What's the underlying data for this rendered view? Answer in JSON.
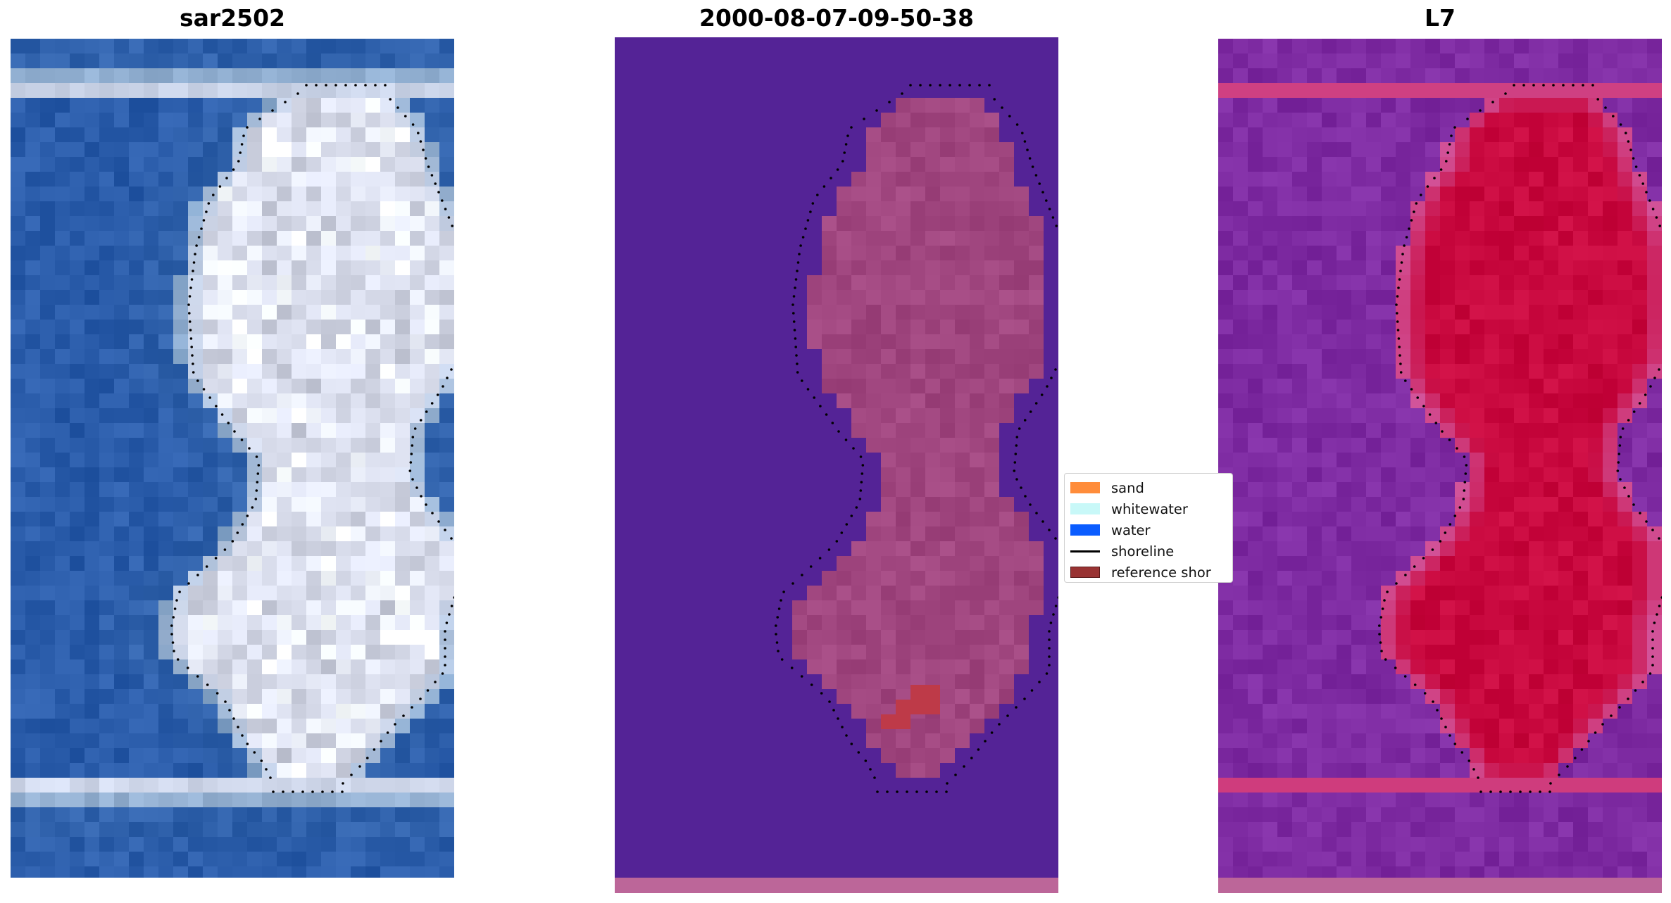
{
  "panels": [
    {
      "title": "sar2502"
    },
    {
      "title": "2000-08-07-09-50-38"
    },
    {
      "title": "L7"
    }
  ],
  "legend": {
    "items": [
      {
        "label": "sand",
        "kind": "patch",
        "color": "#ff8c3a",
        "edge": "#ff8c3a"
      },
      {
        "label": "whitewater",
        "kind": "patch",
        "color": "#c8f8f8",
        "edge": "#c8f8f8"
      },
      {
        "label": "water",
        "kind": "patch",
        "color": "#0a5cff",
        "edge": "#0a5cff"
      },
      {
        "label": "shoreline",
        "kind": "line",
        "color": "#000000"
      },
      {
        "label": "reference shor",
        "kind": "patch",
        "color": "#993333",
        "edge": "#5a1a1a"
      }
    ]
  },
  "colors": {
    "rgb_water": "#2a5caa",
    "rgb_island": "#dfe3f2",
    "classified_water": "#542396",
    "classified_land": "#a0467f",
    "classified_strip": "#bc6699",
    "reference_patch": "#be3a48",
    "index_background": "#7e2ba2",
    "index_island": "#c8083e",
    "index_halo": "#d2549a",
    "shoreline_dots": "#000000"
  }
}
